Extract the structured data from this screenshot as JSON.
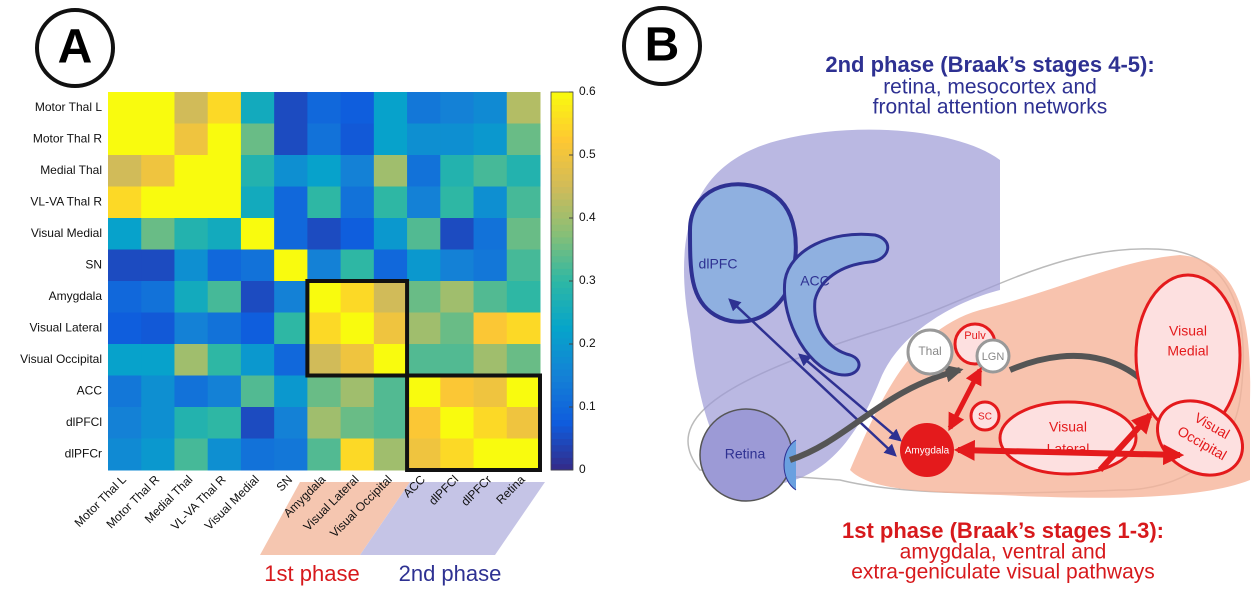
{
  "chart_data": {
    "type": "heatmap",
    "rows": [
      "Motor Thal L",
      "Motor Thal R",
      "Medial Thal",
      "VL-VA Thal R",
      "Visual Medial",
      "SN",
      "Amygdala",
      "Visual Lateral",
      "Visual Occipital",
      "ACC",
      "dlPFCl",
      "dlPFCr"
    ],
    "columns": [
      "Motor Thal L",
      "Motor Thal R",
      "Medial Thal",
      "VL-VA Thal R",
      "Visual Medial",
      "SN",
      "Amygdala",
      "Visual Lateral",
      "Visual Occipital",
      "ACC",
      "dlPFCl",
      "dlPFCr",
      "Retina"
    ],
    "values": [
      [
        0.6,
        0.6,
        0.45,
        0.55,
        0.25,
        0.05,
        0.1,
        0.08,
        0.22,
        0.13,
        0.15,
        0.17,
        0.42
      ],
      [
        0.6,
        0.6,
        0.5,
        0.6,
        0.35,
        0.05,
        0.12,
        0.07,
        0.22,
        0.18,
        0.18,
        0.2,
        0.35
      ],
      [
        0.45,
        0.5,
        0.6,
        0.6,
        0.28,
        0.18,
        0.22,
        0.15,
        0.4,
        0.12,
        0.28,
        0.32,
        0.28
      ],
      [
        0.55,
        0.6,
        0.6,
        0.6,
        0.25,
        0.1,
        0.3,
        0.12,
        0.3,
        0.15,
        0.3,
        0.18,
        0.32
      ],
      [
        0.22,
        0.35,
        0.28,
        0.25,
        0.6,
        0.1,
        0.05,
        0.08,
        0.2,
        0.33,
        0.05,
        0.12,
        0.35
      ],
      [
        0.05,
        0.05,
        0.18,
        0.1,
        0.12,
        0.6,
        0.15,
        0.3,
        0.1,
        0.2,
        0.15,
        0.13,
        0.32
      ],
      [
        0.1,
        0.12,
        0.25,
        0.32,
        0.05,
        0.15,
        0.6,
        0.55,
        0.45,
        0.35,
        0.4,
        0.33,
        0.3
      ],
      [
        0.08,
        0.07,
        0.15,
        0.12,
        0.08,
        0.3,
        0.55,
        0.6,
        0.5,
        0.4,
        0.35,
        0.52,
        0.55
      ],
      [
        0.22,
        0.22,
        0.4,
        0.3,
        0.2,
        0.1,
        0.45,
        0.5,
        0.6,
        0.33,
        0.33,
        0.4,
        0.35
      ],
      [
        0.13,
        0.18,
        0.12,
        0.15,
        0.33,
        0.2,
        0.35,
        0.4,
        0.33,
        0.6,
        0.52,
        0.5,
        0.6
      ],
      [
        0.15,
        0.18,
        0.28,
        0.3,
        0.05,
        0.15,
        0.4,
        0.35,
        0.33,
        0.52,
        0.6,
        0.55,
        0.5
      ],
      [
        0.17,
        0.2,
        0.32,
        0.18,
        0.12,
        0.13,
        0.33,
        0.55,
        0.4,
        0.5,
        0.55,
        0.6,
        0.6
      ]
    ],
    "zlim": [
      0,
      0.6
    ],
    "zticks": [
      0,
      0.1,
      0.2,
      0.3,
      0.4,
      0.5,
      0.6
    ],
    "colormap": [
      "#352a87",
      "#0f5cdd",
      "#1481d6",
      "#06a4ca",
      "#2eb7a4",
      "#87bf77",
      "#d1bb59",
      "#fec832",
      "#f9fb0e"
    ]
  },
  "panel_a": {
    "label": "A",
    "phase1": "1st phase",
    "phase2": "2nd phase"
  },
  "panel_b": {
    "label": "B",
    "title2": [
      "2nd phase (Braak’s stages 4-5):",
      "retina, mesocortex and",
      "frontal attention networks"
    ],
    "title1": [
      "1st phase (Braak’s stages 1-3):",
      "amygdala, ventral and",
      "extra-geniculate visual pathways"
    ],
    "nodes": [
      "dlPFC",
      "ACC",
      "Retina",
      "Thal",
      "Pulv",
      "LGN",
      "SC",
      "Amygdala",
      [
        "Visual",
        "Medial"
      ],
      [
        "Visual",
        "Lateral"
      ],
      [
        "Visual",
        "Occipital"
      ]
    ]
  }
}
